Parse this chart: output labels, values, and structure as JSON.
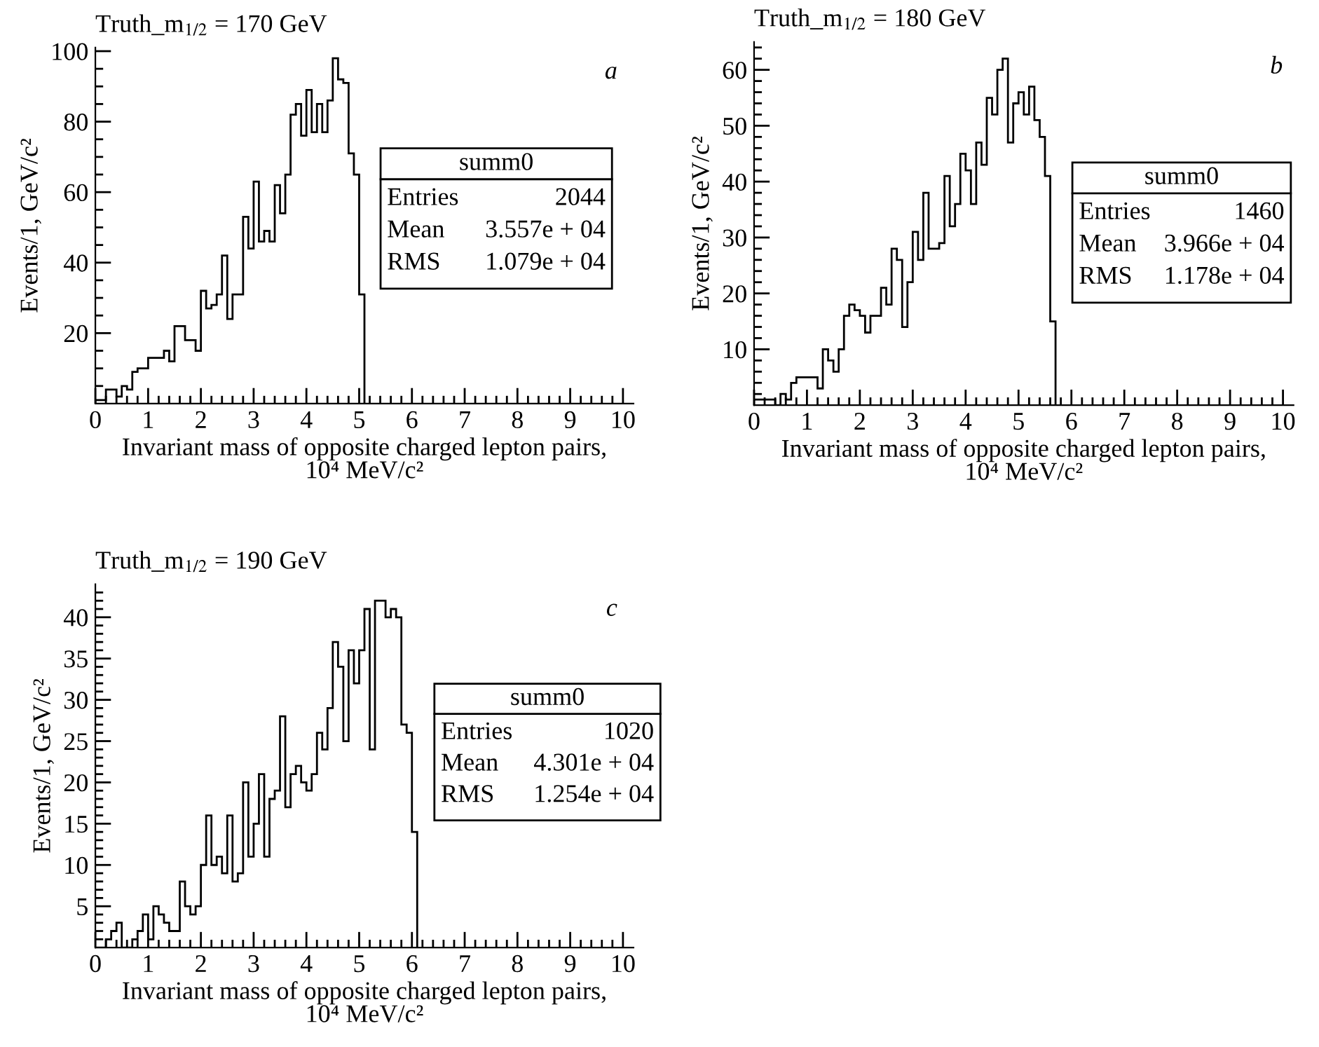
{
  "chart_data": [
    {
      "type": "histogram",
      "title": "Truth_m$_{1/2}$ = 170 GeV",
      "xlabel": "Invariant mass of opposite charged lepton pairs,\n10⁴ MeV/c²",
      "ylabel": "Events/1, GeV/c²",
      "color": "#000000",
      "bins": [
        0,
        0.1,
        0.2,
        0.3,
        0.4,
        0.5,
        0.6,
        0.7,
        0.8,
        0.9,
        1,
        1.1,
        1.2,
        1.3,
        1.4,
        1.5,
        1.6,
        1.7,
        1.8,
        1.9,
        2,
        2.1,
        2.2,
        2.3,
        2.4,
        2.5,
        2.6,
        2.7,
        2.8,
        2.9,
        3,
        3.1,
        3.2,
        3.3,
        3.4,
        3.5,
        3.6,
        3.7,
        3.8,
        3.9,
        4,
        4.1,
        4.2,
        4.3,
        4.4,
        4.5,
        4.6,
        4.7,
        4.8,
        4.9,
        5,
        5.1
      ],
      "values": [
        1,
        1,
        4,
        4,
        2,
        5,
        4,
        9,
        10,
        10,
        13,
        13,
        13,
        15,
        12,
        22,
        22,
        18,
        18,
        15,
        32,
        27,
        28,
        31,
        42,
        24,
        31,
        31,
        53,
        44,
        63,
        46,
        49,
        46,
        62,
        54,
        65,
        82,
        85,
        76,
        89,
        77,
        85,
        77,
        86,
        98,
        92,
        91,
        71,
        65,
        31
      ],
      "xlim": [
        0,
        10.2
      ],
      "ylim": [
        0,
        101
      ],
      "xticks": [
        0,
        {
          "value": 0.2,
          "label": null
        },
        {
          "value": 0.4,
          "label": null
        },
        {
          "value": 0.6,
          "label": null
        },
        {
          "value": 0.8,
          "label": null
        },
        1,
        {
          "value": 1.2,
          "label": null
        },
        {
          "value": 1.4,
          "label": null
        },
        {
          "value": 1.6,
          "label": null
        },
        {
          "value": 1.8,
          "label": null
        },
        2,
        {
          "value": 2.2,
          "label": null
        },
        {
          "value": 2.4,
          "label": null
        },
        {
          "value": 2.6,
          "label": null
        },
        {
          "value": 2.8,
          "label": null
        },
        3,
        {
          "value": 3.2,
          "label": null
        },
        {
          "value": 3.4,
          "label": null
        },
        {
          "value": 3.6,
          "label": null
        },
        {
          "value": 3.8,
          "label": null
        },
        4,
        {
          "value": 4.2,
          "label": null
        },
        {
          "value": 4.4,
          "label": null
        },
        {
          "value": 4.6,
          "label": null
        },
        {
          "value": 4.8,
          "label": null
        },
        5,
        {
          "value": 5.2,
          "label": null
        },
        {
          "value": 5.4,
          "label": null
        },
        {
          "value": 5.6,
          "label": null
        },
        {
          "value": 5.8,
          "label": null
        },
        6,
        {
          "value": 6.2,
          "label": null
        },
        {
          "value": 6.4,
          "label": null
        },
        {
          "value": 6.6,
          "label": null
        },
        {
          "value": 6.8,
          "label": null
        },
        7,
        {
          "value": 7.2,
          "label": null
        },
        {
          "value": 7.4,
          "label": null
        },
        {
          "value": 7.6,
          "label": null
        },
        {
          "value": 7.8,
          "label": null
        },
        8,
        {
          "value": 8.2,
          "label": null
        },
        {
          "value": 8.4,
          "label": null
        },
        {
          "value": 8.6,
          "label": null
        },
        {
          "value": 8.8,
          "label": null
        },
        9,
        {
          "value": 9.2,
          "label": null
        },
        {
          "value": 9.4,
          "label": null
        },
        {
          "value": 9.6,
          "label": null
        },
        {
          "value": 9.8,
          "label": null
        },
        10
      ],
      "yticks": [
        {
          "value": 5,
          "label": null
        },
        {
          "value": 10,
          "label": null
        },
        {
          "value": 15,
          "label": null
        },
        20,
        {
          "value": 25,
          "label": null
        },
        {
          "value": 30,
          "label": null
        },
        {
          "value": 35,
          "label": null
        },
        40,
        {
          "value": 45,
          "label": null
        },
        {
          "value": 50,
          "label": null
        },
        {
          "value": 55,
          "label": null
        },
        60,
        {
          "value": 65,
          "label": null
        },
        {
          "value": 70,
          "label": null
        },
        {
          "value": 75,
          "label": null
        },
        80,
        {
          "value": 85,
          "label": null
        },
        {
          "value": 90,
          "label": null
        },
        {
          "value": 95,
          "label": null
        },
        100
      ],
      "annotations": [
        "a",
        "summ0",
        "Entries",
        "2044",
        "Mean",
        "3.557e + 04",
        "RMS",
        "1.079e + 04"
      ]
    },
    {
      "type": "histogram",
      "title": "Truth_m$_{1/2}$ = 180 GeV",
      "xlabel": "Invariant mass of opposite charged lepton pairs,\n10⁴ MeV/c²",
      "ylabel": "Events/1, GeV/c²",
      "color": "#000000",
      "bins": [
        0,
        0.1,
        0.2,
        0.3,
        0.4,
        0.5,
        0.6,
        0.7,
        0.8,
        0.9,
        1,
        1.1,
        1.2,
        1.3,
        1.4,
        1.5,
        1.6,
        1.7,
        1.8,
        1.9,
        2,
        2.1,
        2.2,
        2.3,
        2.4,
        2.5,
        2.6,
        2.7,
        2.8,
        2.9,
        3,
        3.1,
        3.2,
        3.3,
        3.4,
        3.5,
        3.6,
        3.7,
        3.8,
        3.9,
        4,
        4.1,
        4.2,
        4.3,
        4.4,
        4.5,
        4.6,
        4.7,
        4.8,
        4.9,
        5,
        5.1,
        5.2,
        5.3,
        5.4,
        5.5,
        5.6,
        5.7
      ],
      "values": [
        1,
        1,
        1,
        1,
        0,
        2,
        1,
        4,
        5,
        5,
        5,
        5,
        3,
        10,
        8,
        6,
        10,
        16,
        18,
        17,
        16,
        13,
        16,
        16,
        21,
        18,
        28,
        26,
        14,
        22,
        31,
        26,
        38,
        28,
        28,
        29,
        41,
        32,
        36,
        45,
        42,
        36,
        47,
        43,
        55,
        52,
        60,
        62,
        47,
        54,
        56,
        52,
        57,
        51,
        48,
        41,
        15
      ],
      "xlim": [
        0,
        10.2
      ],
      "ylim": [
        0,
        65
      ],
      "xticks": [
        0,
        {
          "value": 0.2,
          "label": null
        },
        {
          "value": 0.4,
          "label": null
        },
        {
          "value": 0.6,
          "label": null
        },
        {
          "value": 0.8,
          "label": null
        },
        1,
        {
          "value": 1.2,
          "label": null
        },
        {
          "value": 1.4,
          "label": null
        },
        {
          "value": 1.6,
          "label": null
        },
        {
          "value": 1.8,
          "label": null
        },
        2,
        {
          "value": 2.2,
          "label": null
        },
        {
          "value": 2.4,
          "label": null
        },
        {
          "value": 2.6,
          "label": null
        },
        {
          "value": 2.8,
          "label": null
        },
        3,
        {
          "value": 3.2,
          "label": null
        },
        {
          "value": 3.4,
          "label": null
        },
        {
          "value": 3.6,
          "label": null
        },
        {
          "value": 3.8,
          "label": null
        },
        4,
        {
          "value": 4.2,
          "label": null
        },
        {
          "value": 4.4,
          "label": null
        },
        {
          "value": 4.6,
          "label": null
        },
        {
          "value": 4.8,
          "label": null
        },
        5,
        {
          "value": 5.2,
          "label": null
        },
        {
          "value": 5.4,
          "label": null
        },
        {
          "value": 5.6,
          "label": null
        },
        {
          "value": 5.8,
          "label": null
        },
        6,
        {
          "value": 6.2,
          "label": null
        },
        {
          "value": 6.4,
          "label": null
        },
        {
          "value": 6.6,
          "label": null
        },
        {
          "value": 6.8,
          "label": null
        },
        7,
        {
          "value": 7.2,
          "label": null
        },
        {
          "value": 7.4,
          "label": null
        },
        {
          "value": 7.6,
          "label": null
        },
        {
          "value": 7.8,
          "label": null
        },
        8,
        {
          "value": 8.2,
          "label": null
        },
        {
          "value": 8.4,
          "label": null
        },
        {
          "value": 8.6,
          "label": null
        },
        {
          "value": 8.8,
          "label": null
        },
        9,
        {
          "value": 9.2,
          "label": null
        },
        {
          "value": 9.4,
          "label": null
        },
        {
          "value": 9.6,
          "label": null
        },
        {
          "value": 9.8,
          "label": null
        },
        10
      ],
      "yticks": [
        {
          "value": 2,
          "label": null
        },
        {
          "value": 4,
          "label": null
        },
        {
          "value": 6,
          "label": null
        },
        {
          "value": 8,
          "label": null
        },
        10,
        {
          "value": 12,
          "label": null
        },
        {
          "value": 14,
          "label": null
        },
        {
          "value": 16,
          "label": null
        },
        {
          "value": 18,
          "label": null
        },
        20,
        {
          "value": 22,
          "label": null
        },
        {
          "value": 24,
          "label": null
        },
        {
          "value": 26,
          "label": null
        },
        {
          "value": 28,
          "label": null
        },
        30,
        {
          "value": 32,
          "label": null
        },
        {
          "value": 34,
          "label": null
        },
        {
          "value": 36,
          "label": null
        },
        {
          "value": 38,
          "label": null
        },
        40,
        {
          "value": 42,
          "label": null
        },
        {
          "value": 44,
          "label": null
        },
        {
          "value": 46,
          "label": null
        },
        {
          "value": 48,
          "label": null
        },
        50,
        {
          "value": 52,
          "label": null
        },
        {
          "value": 54,
          "label": null
        },
        {
          "value": 56,
          "label": null
        },
        {
          "value": 58,
          "label": null
        },
        60,
        {
          "value": 62,
          "label": null
        },
        {
          "value": 64,
          "label": null
        }
      ],
      "annotations": [
        "b",
        "summ0",
        "Entries",
        "1460",
        "Mean",
        "3.966e + 04",
        "RMS",
        "1.178e + 04"
      ]
    },
    {
      "type": "histogram",
      "title": "Truth_m$_{1/2}$ = 190 GeV",
      "xlabel": "Invariant mass of opposite charged lepton pairs,\n10⁴ MeV/c²",
      "ylabel": "Events/1, GeV/c²",
      "color": "#000000",
      "bins": [
        0,
        0.1,
        0.2,
        0.3,
        0.4,
        0.5,
        0.6,
        0.7,
        0.8,
        0.9,
        1,
        1.1,
        1.2,
        1.3,
        1.4,
        1.5,
        1.6,
        1.7,
        1.8,
        1.9,
        2,
        2.1,
        2.2,
        2.3,
        2.4,
        2.5,
        2.6,
        2.7,
        2.8,
        2.9,
        3,
        3.1,
        3.2,
        3.3,
        3.4,
        3.5,
        3.6,
        3.7,
        3.8,
        3.9,
        4,
        4.1,
        4.2,
        4.3,
        4.4,
        4.5,
        4.6,
        4.7,
        4.8,
        4.9,
        5,
        5.1,
        5.2,
        5.3,
        5.4,
        5.5,
        5.6,
        5.7,
        5.8,
        5.9,
        6,
        6.1
      ],
      "values": [
        0,
        0,
        1,
        2,
        3,
        0,
        0,
        1,
        2,
        4,
        1,
        5,
        4,
        3,
        2,
        2,
        8,
        5,
        4,
        5,
        10,
        16,
        10,
        11,
        9,
        16,
        8,
        9,
        20,
        11,
        15,
        21,
        11,
        18,
        19,
        28,
        17,
        21,
        22,
        20,
        19,
        21,
        26,
        24,
        29,
        37,
        34,
        25,
        36,
        32,
        36,
        41,
        24,
        42,
        42,
        40,
        41,
        40,
        27,
        26,
        14
      ],
      "xlim": [
        0,
        10.2
      ],
      "ylim": [
        0,
        44
      ],
      "xticks": [
        0,
        {
          "value": 0.2,
          "label": null
        },
        {
          "value": 0.4,
          "label": null
        },
        {
          "value": 0.6,
          "label": null
        },
        {
          "value": 0.8,
          "label": null
        },
        1,
        {
          "value": 1.2,
          "label": null
        },
        {
          "value": 1.4,
          "label": null
        },
        {
          "value": 1.6,
          "label": null
        },
        {
          "value": 1.8,
          "label": null
        },
        2,
        {
          "value": 2.2,
          "label": null
        },
        {
          "value": 2.4,
          "label": null
        },
        {
          "value": 2.6,
          "label": null
        },
        {
          "value": 2.8,
          "label": null
        },
        3,
        {
          "value": 3.2,
          "label": null
        },
        {
          "value": 3.4,
          "label": null
        },
        {
          "value": 3.6,
          "label": null
        },
        {
          "value": 3.8,
          "label": null
        },
        4,
        {
          "value": 4.2,
          "label": null
        },
        {
          "value": 4.4,
          "label": null
        },
        {
          "value": 4.6,
          "label": null
        },
        {
          "value": 4.8,
          "label": null
        },
        5,
        {
          "value": 5.2,
          "label": null
        },
        {
          "value": 5.4,
          "label": null
        },
        {
          "value": 5.6,
          "label": null
        },
        {
          "value": 5.8,
          "label": null
        },
        6,
        {
          "value": 6.2,
          "label": null
        },
        {
          "value": 6.4,
          "label": null
        },
        {
          "value": 6.6,
          "label": null
        },
        {
          "value": 6.8,
          "label": null
        },
        7,
        {
          "value": 7.2,
          "label": null
        },
        {
          "value": 7.4,
          "label": null
        },
        {
          "value": 7.6,
          "label": null
        },
        {
          "value": 7.8,
          "label": null
        },
        8,
        {
          "value": 8.2,
          "label": null
        },
        {
          "value": 8.4,
          "label": null
        },
        {
          "value": 8.6,
          "label": null
        },
        {
          "value": 8.8,
          "label": null
        },
        9,
        {
          "value": 9.2,
          "label": null
        },
        {
          "value": 9.4,
          "label": null
        },
        {
          "value": 9.6,
          "label": null
        },
        {
          "value": 9.8,
          "label": null
        },
        10
      ],
      "yticks": [
        {
          "value": 1,
          "label": null
        },
        {
          "value": 2,
          "label": null
        },
        {
          "value": 3,
          "label": null
        },
        {
          "value": 4,
          "label": null
        },
        5,
        {
          "value": 6,
          "label": null
        },
        {
          "value": 7,
          "label": null
        },
        {
          "value": 8,
          "label": null
        },
        {
          "value": 9,
          "label": null
        },
        10,
        {
          "value": 11,
          "label": null
        },
        {
          "value": 12,
          "label": null
        },
        {
          "value": 13,
          "label": null
        },
        {
          "value": 14,
          "label": null
        },
        15,
        {
          "value": 16,
          "label": null
        },
        {
          "value": 17,
          "label": null
        },
        {
          "value": 18,
          "label": null
        },
        {
          "value": 19,
          "label": null
        },
        20,
        {
          "value": 21,
          "label": null
        },
        {
          "value": 22,
          "label": null
        },
        {
          "value": 23,
          "label": null
        },
        {
          "value": 24,
          "label": null
        },
        25,
        {
          "value": 26,
          "label": null
        },
        {
          "value": 27,
          "label": null
        },
        {
          "value": 28,
          "label": null
        },
        {
          "value": 29,
          "label": null
        },
        30,
        {
          "value": 31,
          "label": null
        },
        {
          "value": 32,
          "label": null
        },
        {
          "value": 33,
          "label": null
        },
        {
          "value": 34,
          "label": null
        },
        35,
        {
          "value": 36,
          "label": null
        },
        {
          "value": 37,
          "label": null
        },
        {
          "value": 38,
          "label": null
        },
        {
          "value": 39,
          "label": null
        },
        40,
        {
          "value": 41,
          "label": null
        },
        {
          "value": 42,
          "label": null
        },
        {
          "value": 43,
          "label": null
        }
      ],
      "annotations": [
        "c",
        "summ0",
        "Entries",
        "1020",
        "Mean",
        "4.301e + 04",
        "RMS",
        "1.254e + 04"
      ]
    }
  ]
}
